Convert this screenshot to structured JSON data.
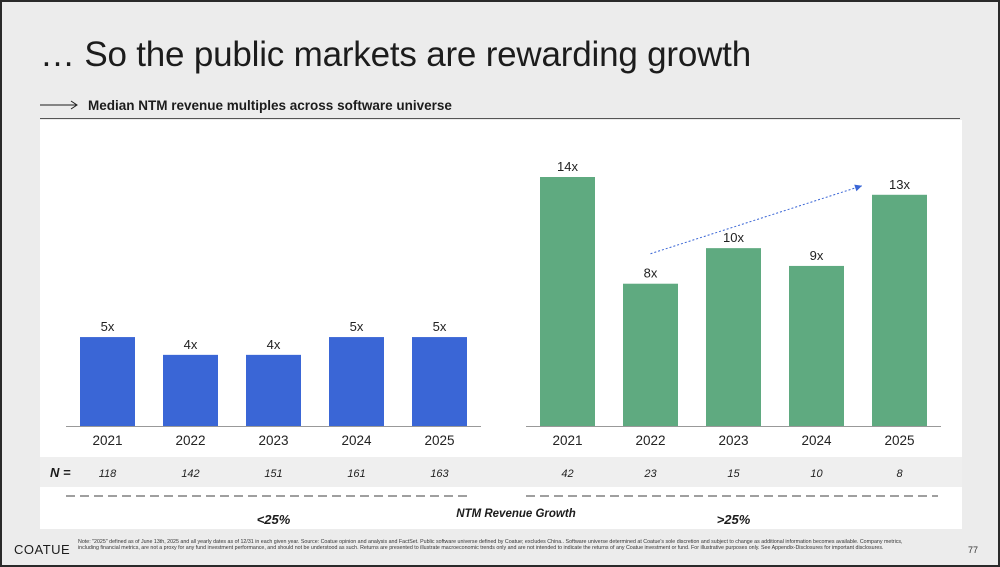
{
  "slide": {
    "title": "… So the public markets are rewarding growth",
    "subtitle": "Median NTM revenue multiples across software universe",
    "logo": "COATUE",
    "page_number": "77",
    "footnote": "Note: \"2025\" defined as of June 13th, 2025 and all yearly dates as of 12/31 in each given year.  Source: Coatue opinion and analysis and FactSet. Public software universe defined by Coatue; excludes China.. Software universe determined at Coatue's sole discretion and subject to change as additional information becomes available. Company metrics, including financial metrics, are not a proxy for any fund investment performance, and should not be understood as such. Returns are presented to illustrate macroeconomic trends only and are not intended to indicate the returns of any Coatue investment or fund. For illustrative purposes only. See Appendix-Disclosures for important disclosures.",
    "arrow_icon": "right-arrow-icon"
  },
  "chart_data": {
    "type": "bar",
    "x_axis_title": "NTM Revenue Growth",
    "n_label": "N =",
    "ylim": [
      0,
      14
    ],
    "groups": [
      {
        "label": "<25%",
        "color": "#3a66d6",
        "categories": [
          "2021",
          "2022",
          "2023",
          "2024",
          "2025"
        ],
        "values": [
          5,
          4,
          4,
          5,
          5
        ],
        "value_labels": [
          "5x",
          "4x",
          "4x",
          "5x",
          "5x"
        ],
        "n": [
          "118",
          "142",
          "151",
          "161",
          "163"
        ]
      },
      {
        "label": ">25%",
        "color": "#5faa80",
        "categories": [
          "2021",
          "2022",
          "2023",
          "2024",
          "2025"
        ],
        "values": [
          14,
          8,
          10,
          9,
          13
        ],
        "value_labels": [
          "14x",
          "8x",
          "10x",
          "9x",
          "13x"
        ],
        "n": [
          "42",
          "23",
          "15",
          "10",
          "8"
        ]
      }
    ],
    "annotations": [
      {
        "type": "trend-arrow",
        "group": 1,
        "from_category": "2022",
        "to_category": "2025",
        "color": "#3a66d6",
        "style": "dotted"
      }
    ]
  }
}
